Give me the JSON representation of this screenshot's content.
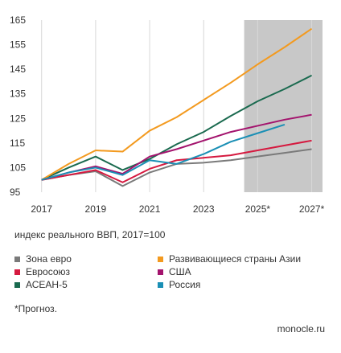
{
  "chart_data": {
    "type": "line",
    "x": [
      2017,
      2018,
      2019,
      2020,
      2021,
      2022,
      2023,
      2024,
      2025,
      2026,
      2027
    ],
    "x_tick_labels": [
      "2017",
      "2019",
      "2021",
      "2023",
      "2025*",
      "2027*"
    ],
    "y_ticks": [
      95,
      105,
      115,
      125,
      135,
      145,
      155,
      165
    ],
    "ylim": [
      95,
      165
    ],
    "xlim": [
      2016.8,
      2027.4
    ],
    "forecast_from": 2024.5,
    "grid": "vertical",
    "series": [
      {
        "name": "Зона евро",
        "color": "#7a7a7a",
        "values": [
          100,
          102,
          103.5,
          97.5,
          103,
          106.5,
          107,
          108,
          109.5,
          111,
          112.5
        ]
      },
      {
        "name": "Евросоюз",
        "color": "#d5193f",
        "values": [
          100,
          102,
          104,
          99,
          104.5,
          108,
          109,
          110,
          112,
          114,
          116
        ]
      },
      {
        "name": "АСЕАН-5",
        "color": "#1a6a4f",
        "values": [
          100,
          105,
          109.5,
          104,
          108.5,
          114.5,
          119.5,
          126,
          132,
          137,
          142.5
        ]
      },
      {
        "name": "Развивающиеся страны Азии",
        "color": "#f39a1f",
        "values": [
          100,
          106.5,
          112,
          111.5,
          120,
          125.5,
          132.5,
          139.5,
          147,
          154,
          161.5
        ]
      },
      {
        "name": "США",
        "color": "#a3136d",
        "values": [
          100,
          103,
          105.5,
          102.5,
          109.5,
          112.5,
          116,
          119.5,
          122,
          124.5,
          126.5
        ]
      },
      {
        "name": "Россия",
        "color": "#1a8fb5",
        "values": [
          100,
          103,
          105,
          102,
          108,
          106.5,
          110.5,
          115.5,
          119,
          122.5,
          null
        ]
      }
    ]
  },
  "caption": "индекс реального ВВП, 2017=100",
  "footnote": "*Прогноз.",
  "source": "monocle.ru"
}
